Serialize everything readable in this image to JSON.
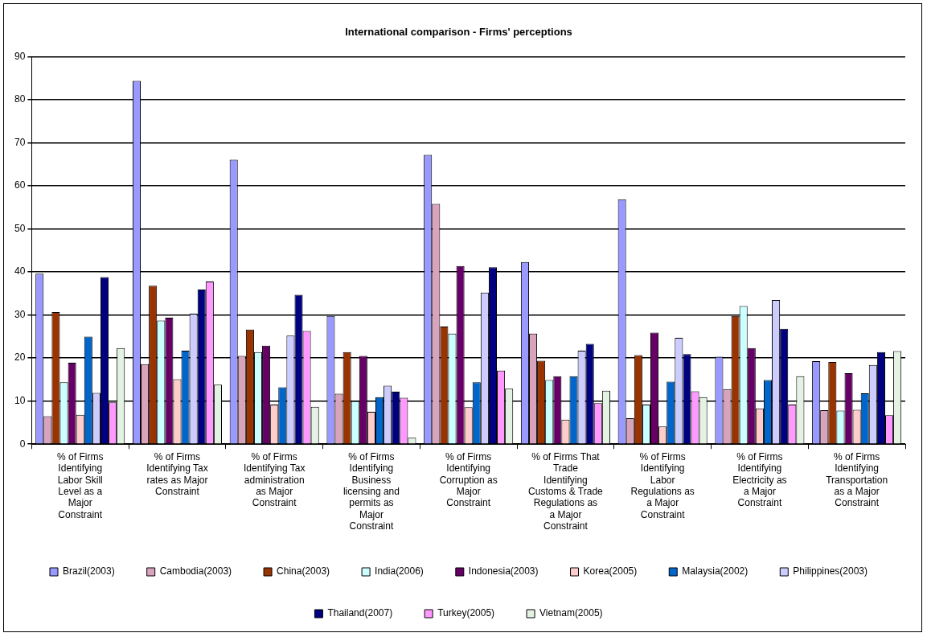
{
  "chart_data": {
    "type": "bar",
    "title": "International comparison - Firms' perceptions",
    "categories": [
      "% of Firms Identifying Labor Skill Level as a Major Constraint",
      "% of Firms Identifying Tax rates as Major Constraint",
      "% of Firms Identifying Tax administration as Major Constraint",
      "% of Firms Identifying Business licensing and permits as Major Constraint",
      "% of Firms Identifying Corruption as Major Constraint",
      "% of Firms That Trade Identifying Customs & Trade Regulations as a Major Constraint",
      "% of Firms Identifying Labor Regulations as a Major Constraint",
      "% of Firms Identifying Electricity as a Major Constraint",
      "% of Firms Identifying Transportation as a Major Constraint"
    ],
    "series": [
      {
        "name": "Brazil(2003)",
        "color": "#9999ff",
        "values": [
          39.6,
          84.4,
          66.1,
          29.8,
          67.2,
          42.3,
          56.9,
          20.3,
          19.3
        ]
      },
      {
        "name": "Cambodia(2003)",
        "color": "#d9a3bd",
        "values": [
          6.5,
          18.6,
          20.5,
          11.7,
          55.8,
          25.7,
          6.0,
          12.8,
          7.9
        ]
      },
      {
        "name": "China(2003)",
        "color": "#993300",
        "values": [
          30.7,
          36.8,
          26.6,
          21.4,
          27.3,
          19.4,
          20.7,
          29.8,
          19.1
        ]
      },
      {
        "name": "India(2006)",
        "color": "#ccffff",
        "values": [
          14.4,
          28.7,
          21.4,
          10.0,
          25.7,
          14.9,
          9.2,
          32.1,
          7.8
        ]
      },
      {
        "name": "Indonesia(2003)",
        "color": "#660066",
        "values": [
          18.9,
          29.4,
          22.9,
          20.5,
          41.4,
          15.8,
          25.9,
          22.3,
          16.5
        ]
      },
      {
        "name": "Korea(2005)",
        "color": "#ffcccc",
        "values": [
          6.8,
          15.1,
          9.2,
          7.5,
          8.6,
          5.7,
          4.1,
          8.3,
          8.0
        ]
      },
      {
        "name": "Malaysia(2002)",
        "color": "#0066cc",
        "values": [
          25.0,
          21.7,
          13.2,
          10.9,
          14.4,
          15.8,
          14.5,
          14.9,
          11.8
        ]
      },
      {
        "name": "Philippines(2003)",
        "color": "#ccccff",
        "values": [
          11.9,
          30.3,
          25.2,
          13.6,
          35.2,
          21.7,
          24.7,
          33.5,
          18.4
        ]
      },
      {
        "name": "Thailand(2007)",
        "color": "#000080",
        "values": [
          38.8,
          35.9,
          34.7,
          12.2,
          41.1,
          23.3,
          20.9,
          26.8,
          21.4
        ]
      },
      {
        "name": "Turkey(2005)",
        "color": "#ff99ff",
        "values": [
          9.7,
          37.8,
          26.3,
          10.8,
          17.1,
          9.5,
          12.3,
          9.2,
          6.7
        ]
      },
      {
        "name": "Vietnam(2005)",
        "color": "#e3f2e3",
        "values": [
          22.3,
          13.8,
          8.7,
          1.5,
          12.9,
          12.4,
          10.9,
          15.8,
          21.6
        ]
      }
    ],
    "ylim": [
      0,
      90
    ],
    "yticks": [
      0,
      10,
      20,
      30,
      40,
      50,
      60,
      70,
      80,
      90
    ],
    "grid": "y",
    "legend": "bottom"
  }
}
